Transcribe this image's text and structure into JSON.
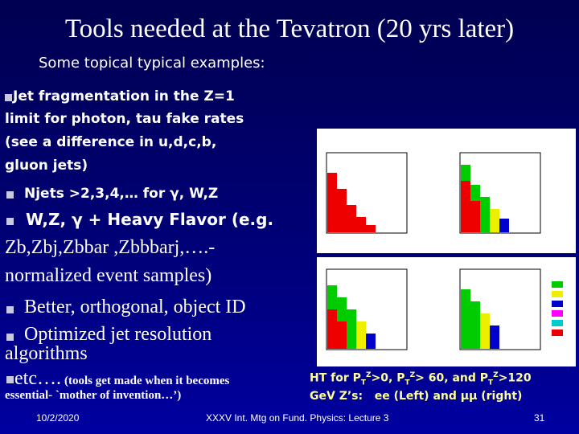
{
  "title": "Tools needed at the Tevatron (20 yrs later)",
  "subtitle": "Some topical typical examples:",
  "bullets": [
    {
      "lines": [
        "Jet fragmentation in the Z=1",
        "limit for photon, tau fake rates",
        "(see a difference in u,d,c,b,",
        "gluon jets)"
      ]
    },
    {
      "lines": [
        "Njets >2,3,4,… for γ, W,Z"
      ]
    },
    {
      "lines": [
        "W,Z, γ + Heavy Flavor (e.g.",
        "Zb,Zbj,Zbbar ,Zbbbarj,….-",
        "normalized event samples)"
      ]
    },
    {
      "lines": [
        "Better, orthogonal, object ID"
      ]
    },
    {
      "lines": [
        "Optimized jet resolution",
        "algorithms"
      ]
    },
    {
      "lines": [
        "etc….",
        "(tools get made when it becomes",
        "essential- `mother of invention…’)"
      ]
    }
  ],
  "caption": {
    "line1": [
      "HT for P",
      "T",
      "Z",
      ">0, P",
      "T",
      "Z",
      "> 60, and P",
      "T",
      "Z",
      ">120"
    ],
    "line2": "GeV Z’s:   ee (Left) and μμ (right)"
  },
  "footer": {
    "date": "10/2/2020",
    "center": "XXXV Int. Mtg on Fund. Physics: Lecture 3",
    "page": "31"
  }
}
